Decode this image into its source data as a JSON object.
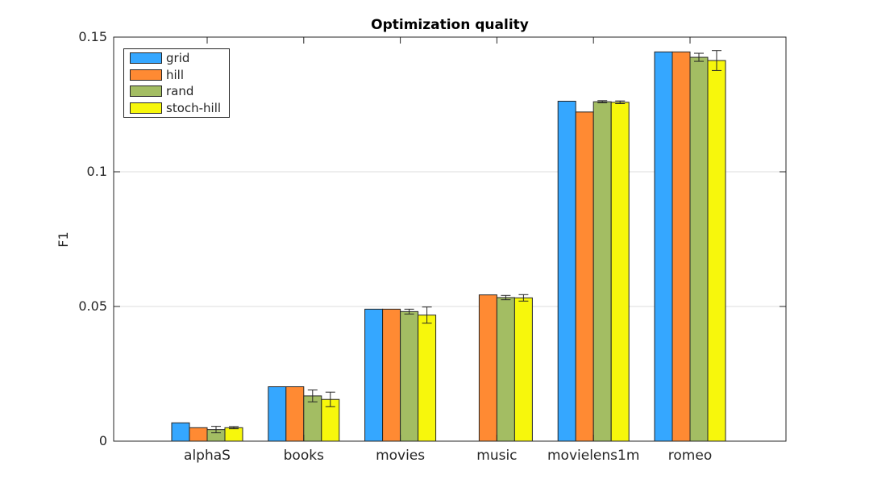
{
  "chart_data": {
    "type": "bar",
    "title": "Optimization quality",
    "xlabel": "",
    "ylabel": "F1",
    "categories": [
      "alphaS",
      "books",
      "movies",
      "music",
      "movielens1m",
      "romeo"
    ],
    "ylim": [
      0,
      0.15
    ],
    "yticks": [
      0,
      0.05,
      0.1,
      0.15
    ],
    "ytick_labels": [
      "0",
      "0.05",
      "0.1",
      "0.15"
    ],
    "grid": "horizontal",
    "legend_position": "top-left",
    "series": [
      {
        "name": "grid",
        "color": "#35a7ff",
        "values": [
          0.0068,
          0.0202,
          0.049,
          null,
          0.1262,
          0.1445
        ],
        "errors": [
          null,
          null,
          null,
          null,
          null,
          null
        ]
      },
      {
        "name": "hill",
        "color": "#ff8a33",
        "values": [
          0.005,
          0.0202,
          0.049,
          0.0543,
          0.1222,
          0.1445
        ],
        "errors": [
          null,
          null,
          null,
          null,
          null,
          null
        ]
      },
      {
        "name": "rand",
        "color": "#a3bd63",
        "values": [
          0.0043,
          0.0168,
          0.0481,
          0.0533,
          0.126,
          0.1425
        ],
        "errors": [
          0.0012,
          0.0022,
          0.0009,
          0.0008,
          0.0004,
          0.0015
        ]
      },
      {
        "name": "stoch-hill",
        "color": "#f7f70c",
        "values": [
          0.005,
          0.0155,
          0.0468,
          0.0532,
          0.1258,
          0.1413
        ],
        "errors": [
          0.0004,
          0.0027,
          0.003,
          0.0012,
          0.0005,
          0.0037
        ]
      }
    ]
  }
}
